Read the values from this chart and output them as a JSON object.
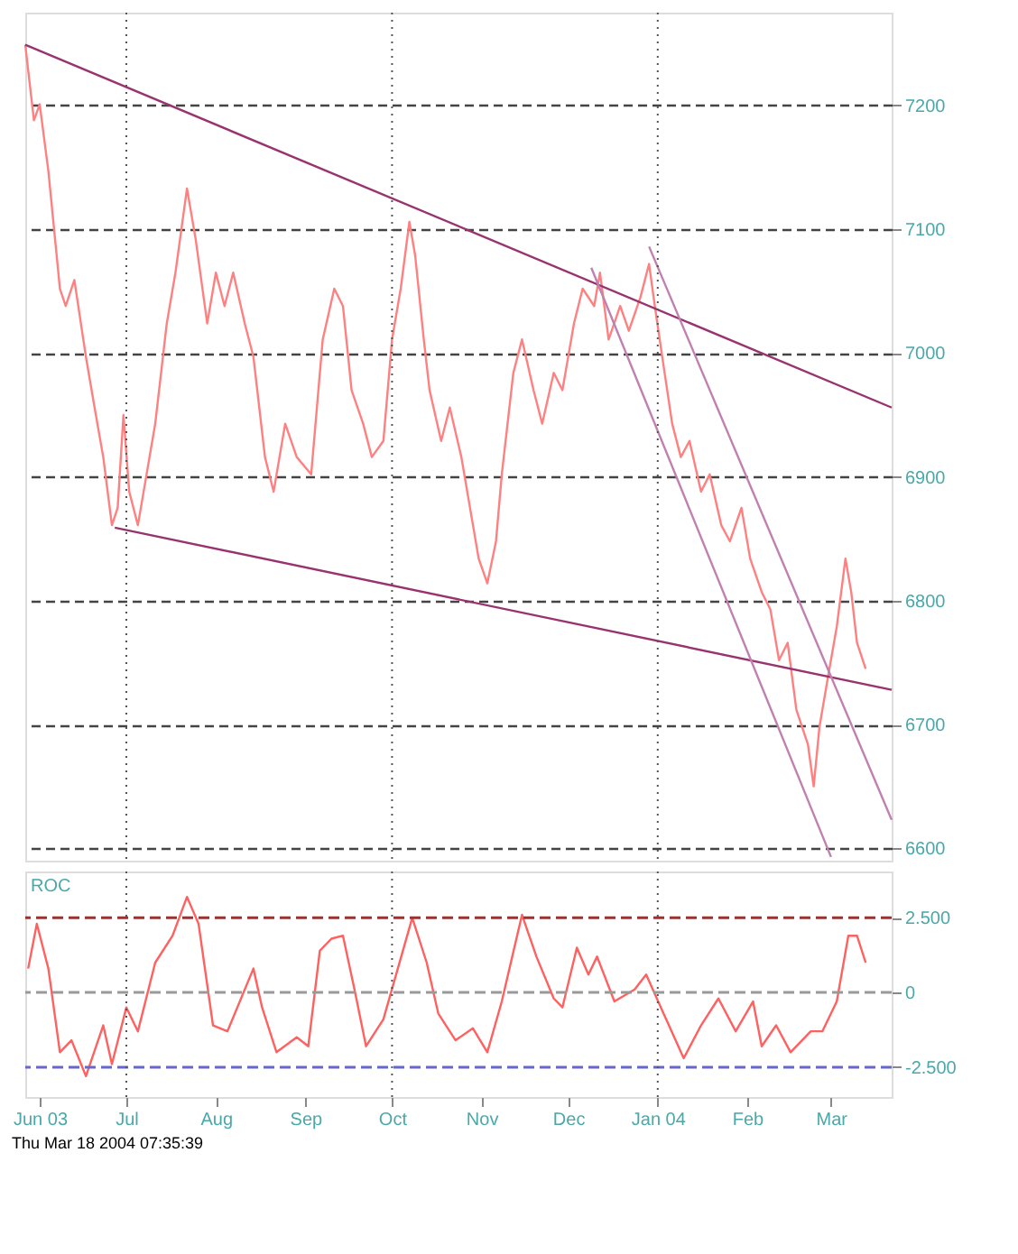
{
  "chart_data": [
    {
      "type": "line",
      "xlim": [
        "2003-05-27",
        "2004-03-22"
      ],
      "ylim": [
        6590,
        7275
      ],
      "yticks": [
        6600,
        6700,
        6800,
        6900,
        7000,
        7100,
        7200
      ],
      "tick_labels": "y",
      "grid": "y",
      "ref_lines": [
        {
          "axis": "x",
          "value": "2003-07-01",
          "color": "#555555",
          "line_style": "dotted"
        },
        {
          "axis": "x",
          "value": "2003-10-01",
          "color": "#555555",
          "line_style": "dotted"
        },
        {
          "axis": "x",
          "value": "2004-01-01",
          "color": "#555555",
          "line_style": "dotted"
        }
      ],
      "series": [
        {
          "color": "#ff8080",
          "x": [
            "2003-05-27",
            "2003-05-30",
            "2003-06-01",
            "2003-06-04",
            "2003-06-08",
            "2003-06-10",
            "2003-06-13",
            "2003-06-17",
            "2003-06-20",
            "2003-06-23",
            "2003-06-26",
            "2003-06-28",
            "2003-06-30",
            "2003-07-02",
            "2003-07-05",
            "2003-07-08",
            "2003-07-11",
            "2003-07-15",
            "2003-07-18",
            "2003-07-22",
            "2003-07-25",
            "2003-07-29",
            "2003-08-01",
            "2003-08-04",
            "2003-08-07",
            "2003-08-11",
            "2003-08-14",
            "2003-08-18",
            "2003-08-21",
            "2003-08-25",
            "2003-08-29",
            "2003-09-03",
            "2003-09-07",
            "2003-09-11",
            "2003-09-14",
            "2003-09-17",
            "2003-09-21",
            "2003-09-24",
            "2003-09-28",
            "2003-10-01",
            "2003-10-04",
            "2003-10-07",
            "2003-10-09",
            "2003-10-12",
            "2003-10-14",
            "2003-10-18",
            "2003-10-21",
            "2003-10-25",
            "2003-10-28",
            "2003-10-31",
            "2003-11-03",
            "2003-11-06",
            "2003-11-08",
            "2003-11-12",
            "2003-11-15",
            "2003-11-19",
            "2003-11-22",
            "2003-11-26",
            "2003-11-29",
            "2003-12-03",
            "2003-12-06",
            "2003-12-10",
            "2003-12-12",
            "2003-12-15",
            "2003-12-19",
            "2003-12-22",
            "2003-12-26",
            "2003-12-29",
            "2003-12-31",
            "2004-01-03",
            "2004-01-06",
            "2004-01-09",
            "2004-01-12",
            "2004-01-16",
            "2004-01-19",
            "2004-01-23",
            "2004-01-26",
            "2004-01-30",
            "2004-02-02",
            "2004-02-06",
            "2004-02-09",
            "2004-02-12",
            "2004-02-15",
            "2004-02-18",
            "2004-02-22",
            "2004-02-24",
            "2004-02-26",
            "2004-02-29",
            "2004-03-03",
            "2004-03-06",
            "2004-03-08",
            "2004-03-10",
            "2004-03-13"
          ],
          "values": [
            7249,
            7188,
            7201,
            7147,
            7052,
            7038,
            7059,
            6997,
            6956,
            6916,
            6861,
            6875,
            6950,
            6888,
            6861,
            6902,
            6943,
            7024,
            7065,
            7133,
            7092,
            7024,
            7065,
            7038,
            7065,
            7024,
            6997,
            6916,
            6888,
            6943,
            6916,
            6902,
            7011,
            7052,
            7038,
            6970,
            6943,
            6916,
            6929,
            7011,
            7052,
            7106,
            7079,
            7011,
            6970,
            6929,
            6956,
            6916,
            6875,
            6834,
            6814,
            6848,
            6902,
            6984,
            7011,
            6970,
            6943,
            6984,
            6970,
            7024,
            7052,
            7038,
            7065,
            7011,
            7038,
            7018,
            7045,
            7072,
            7038,
            6990,
            6943,
            6916,
            6929,
            6888,
            6902,
            6861,
            6848,
            6875,
            6834,
            6807,
            6793,
            6752,
            6766,
            6712,
            6684,
            6650,
            6698,
            6739,
            6779,
            6834,
            6807,
            6766,
            6745
          ]
        },
        {
          "type": "line",
          "color": "#993370",
          "x": [
            "2003-05-27",
            "2004-03-22"
          ],
          "values": [
            7249,
            6956
          ]
        },
        {
          "type": "line",
          "color": "#993370",
          "x": [
            "2003-06-27",
            "2004-03-22"
          ],
          "values": [
            6859,
            6728
          ]
        },
        {
          "type": "line",
          "color": "#c080b0",
          "x": [
            "2003-12-09",
            "2004-03-01"
          ],
          "values": [
            7069,
            6593
          ]
        },
        {
          "type": "line",
          "color": "#c080b0",
          "x": [
            "2003-12-29",
            "2004-03-22"
          ],
          "values": [
            7086,
            6623
          ]
        }
      ]
    },
    {
      "type": "line",
      "title": "ROC",
      "annotations": [
        "Thu Mar 18 2004 07:35:39"
      ],
      "xlim": [
        "2003-05-27",
        "2004-03-22"
      ],
      "xticks": [
        {
          "value": "2003-06-01",
          "label": "Jun 03"
        },
        {
          "value": "2003-07-01",
          "label": "Jul"
        },
        {
          "value": "2003-08-01",
          "label": "Aug"
        },
        {
          "value": "2003-09-01",
          "label": "Sep"
        },
        {
          "value": "2003-10-01",
          "label": "Oct"
        },
        {
          "value": "2003-11-01",
          "label": "Nov"
        },
        {
          "value": "2003-12-01",
          "label": "Dec"
        },
        {
          "value": "2004-01-01",
          "label": "Jan 04"
        },
        {
          "value": "2004-02-01",
          "label": "Feb"
        },
        {
          "value": "2004-03-01",
          "label": "Mar"
        }
      ],
      "ylim": [
        -3.5,
        4.05
      ],
      "yticks": [
        {
          "value": 2.5,
          "label": "2.500"
        },
        0,
        {
          "value": -2.5,
          "label": "-2.500"
        }
      ],
      "ref_lines": [
        {
          "axis": "y",
          "value": 2.5,
          "color": "#993333",
          "line_style": "dashed"
        },
        {
          "axis": "y",
          "value": 0,
          "color": "#999999",
          "line_style": "dashed"
        },
        {
          "axis": "y",
          "value": -2.5,
          "color": "#6666cc",
          "line_style": "dashed"
        },
        {
          "axis": "x",
          "value": "2003-07-01",
          "color": "#555555",
          "line_style": "dotted"
        },
        {
          "axis": "x",
          "value": "2003-10-01",
          "color": "#555555",
          "line_style": "dotted"
        },
        {
          "axis": "x",
          "value": "2004-01-01",
          "color": "#555555",
          "line_style": "dotted"
        }
      ],
      "series": [
        {
          "color": "#ff6060",
          "x": [
            "2003-05-28",
            "2003-05-31",
            "2003-06-04",
            "2003-06-08",
            "2003-06-12",
            "2003-06-17",
            "2003-06-23",
            "2003-06-26",
            "2003-07-01",
            "2003-07-05",
            "2003-07-11",
            "2003-07-17",
            "2003-07-22",
            "2003-07-26",
            "2003-07-31",
            "2003-08-05",
            "2003-08-14",
            "2003-08-17",
            "2003-08-22",
            "2003-08-29",
            "2003-09-02",
            "2003-09-06",
            "2003-09-10",
            "2003-09-14",
            "2003-09-18",
            "2003-09-22",
            "2003-09-28",
            "2003-10-03",
            "2003-10-08",
            "2003-10-13",
            "2003-10-17",
            "2003-10-23",
            "2003-10-29",
            "2003-11-03",
            "2003-11-08",
            "2003-11-15",
            "2003-11-20",
            "2003-11-26",
            "2003-11-29",
            "2003-12-04",
            "2003-12-08",
            "2003-12-11",
            "2003-12-17",
            "2003-12-24",
            "2003-12-28",
            "2004-01-03",
            "2004-01-10",
            "2004-01-16",
            "2004-01-22",
            "2004-01-28",
            "2004-02-03",
            "2004-02-06",
            "2004-02-11",
            "2004-02-16",
            "2004-02-23",
            "2004-02-27",
            "2004-03-03",
            "2004-03-07",
            "2004-03-10",
            "2004-03-13"
          ],
          "values": [
            0.8,
            2.3,
            0.8,
            -2.0,
            -1.6,
            -2.8,
            -1.1,
            -2.4,
            -0.5,
            -1.3,
            1.0,
            1.9,
            3.2,
            2.3,
            -1.1,
            -1.3,
            0.8,
            -0.5,
            -2.0,
            -1.5,
            -1.8,
            1.4,
            1.8,
            1.9,
            0.1,
            -1.8,
            -0.9,
            0.8,
            2.5,
            1.0,
            -0.7,
            -1.6,
            -1.2,
            -2.0,
            -0.3,
            2.6,
            1.2,
            -0.2,
            -0.5,
            1.5,
            0.6,
            1.2,
            -0.3,
            0.1,
            0.6,
            -0.7,
            -2.2,
            -1.1,
            -0.2,
            -1.3,
            -0.3,
            -1.8,
            -1.1,
            -2.0,
            -1.3,
            -1.3,
            -0.3,
            1.9,
            1.9,
            1.0
          ]
        }
      ]
    }
  ]
}
